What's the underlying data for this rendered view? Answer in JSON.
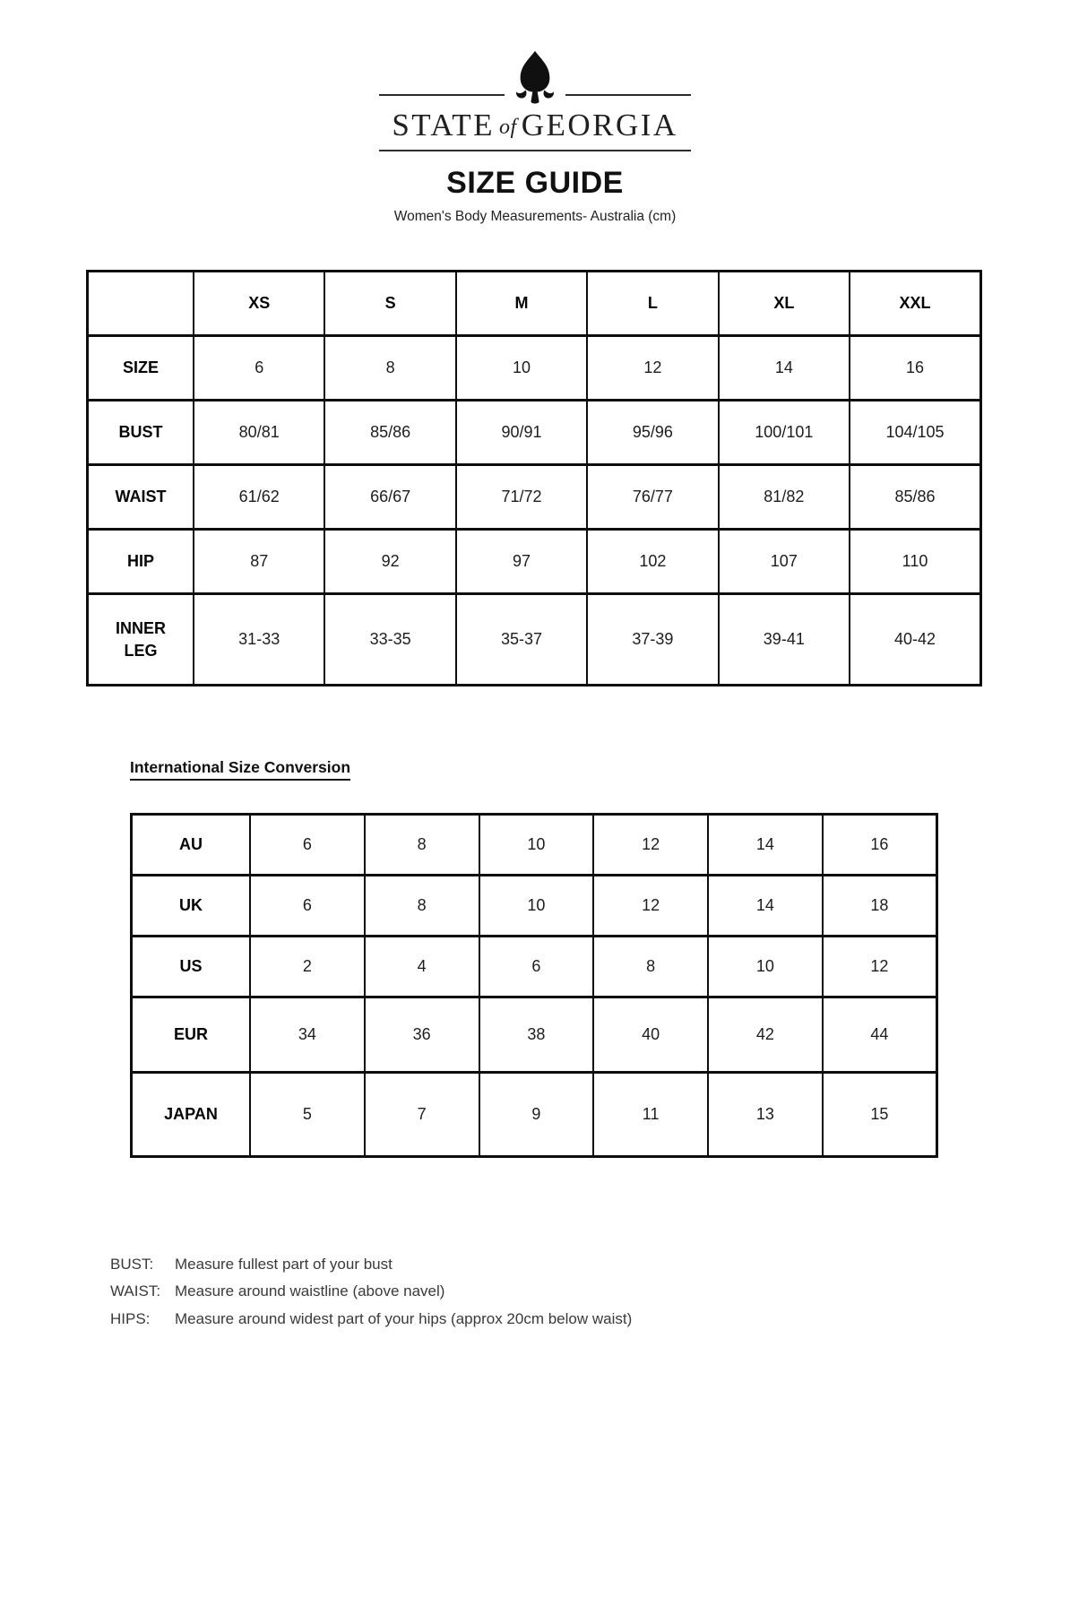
{
  "brand": {
    "icon": "tree-icon",
    "name_left": "STATE",
    "name_of": "of",
    "name_right": "GEORGIA"
  },
  "page": {
    "title": "SIZE GUIDE",
    "subtitle": "Women's Body Measurements- Australia (cm)"
  },
  "measurements_table": {
    "columns": [
      "",
      "XS",
      "S",
      "M",
      "L",
      "XL",
      "XXL"
    ],
    "rows": [
      {
        "label": "SIZE",
        "values": [
          "6",
          "8",
          "10",
          "12",
          "14",
          "16"
        ]
      },
      {
        "label": "BUST",
        "values": [
          "80/81",
          "85/86",
          "90/91",
          "95/96",
          "100/101",
          "104/105"
        ]
      },
      {
        "label": "WAIST",
        "values": [
          "61/62",
          "66/67",
          "71/72",
          "76/77",
          "81/82",
          "85/86"
        ]
      },
      {
        "label": "HIP",
        "values": [
          "87",
          "92",
          "97",
          "102",
          "107",
          "110"
        ]
      },
      {
        "label": "INNER LEG",
        "values": [
          "31-33",
          "33-35",
          "35-37",
          "37-39",
          "39-41",
          "40-42"
        ]
      }
    ]
  },
  "conversion_table": {
    "heading": "International Size Conversion",
    "rows": [
      {
        "label": "AU",
        "values": [
          "6",
          "8",
          "10",
          "12",
          "14",
          "16"
        ]
      },
      {
        "label": "UK",
        "values": [
          "6",
          "8",
          "10",
          "12",
          "14",
          "18"
        ]
      },
      {
        "label": "US",
        "values": [
          "2",
          "4",
          "6",
          "8",
          "10",
          "12"
        ]
      },
      {
        "label": "EUR",
        "values": [
          "34",
          "36",
          "38",
          "40",
          "42",
          "44"
        ]
      },
      {
        "label": "JAPAN",
        "values": [
          "5",
          "7",
          "9",
          "11",
          "13",
          "15"
        ]
      }
    ]
  },
  "notes": [
    {
      "label": "BUST:",
      "text": "Measure fullest part of your bust"
    },
    {
      "label": "WAIST:",
      "text": "Measure around waistline (above navel)"
    },
    {
      "label": "HIPS:",
      "text": "Measure around widest part of your hips (approx 20cm below waist)"
    }
  ],
  "colors": {
    "ink": "#101010",
    "border": "#0e0e0e",
    "note_text": "#3a3a3a"
  }
}
